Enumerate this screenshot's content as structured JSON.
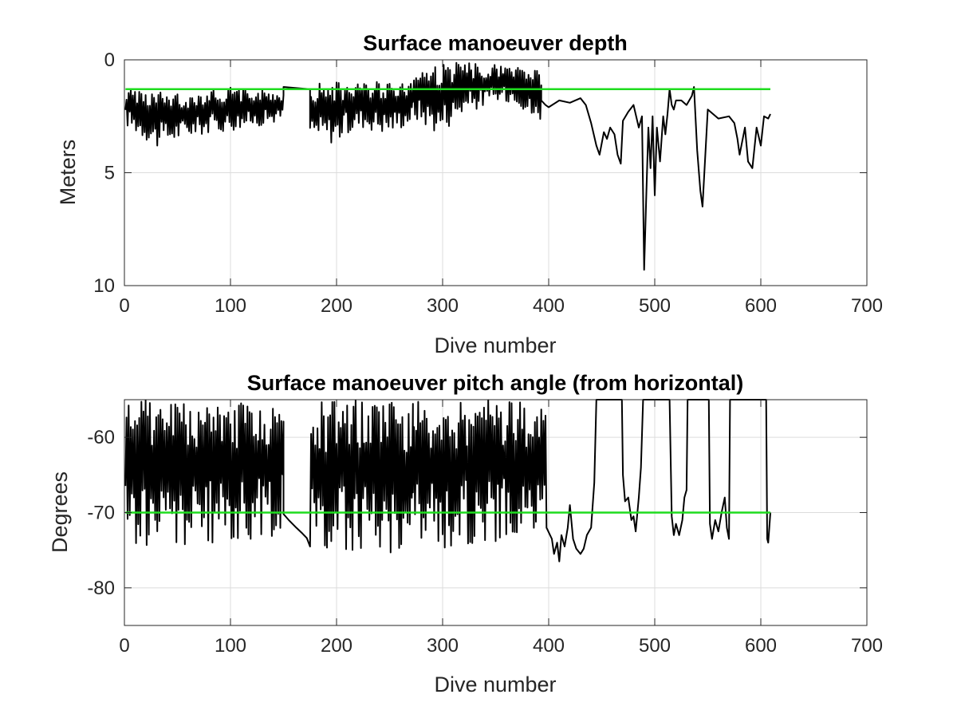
{
  "chart_data": [
    {
      "type": "line",
      "title": "Surface manoeuver depth",
      "xlabel": "Dive number",
      "ylabel": "Meters",
      "xlim": [
        0,
        700
      ],
      "ylim": [
        0,
        10
      ],
      "y_reversed": true,
      "grid": true,
      "x_ticks": [
        "0",
        "100",
        "200",
        "300",
        "400",
        "500",
        "600",
        "700"
      ],
      "y_ticks": [
        "0",
        "5",
        "10"
      ],
      "colors": {
        "data": "#000000",
        "threshold": "#1fdc1f",
        "grid": "#dcdcdc"
      },
      "reference_line": {
        "y": 1.3,
        "x_range": [
          1,
          609
        ]
      },
      "series": [
        {
          "segments": [
            {
              "oscillating": true,
              "x": [
                1,
                150
              ],
              "bottom": [
                2.9,
                3.9,
                3.4,
                3.2,
                3.0,
                2.7
              ],
              "top": [
                1.2,
                1.4,
                1.5,
                1.2,
                1.3,
                1.4
              ]
            },
            {
              "oscillating": false,
              "x": [
                150,
                175
              ],
              "y": [
                1.2,
                1.3
              ]
            },
            {
              "oscillating": true,
              "x": [
                175,
                272
              ],
              "bottom": [
                3.5,
                3.7,
                3.0,
                3.3,
                2.8
              ],
              "top": [
                1.1,
                0.9,
                1.0,
                0.9,
                1.0
              ]
            },
            {
              "oscillating": true,
              "x": [
                272,
                393
              ],
              "bottom": [
                2.6,
                3.3,
                2.4,
                2.0,
                1.8,
                3.2
              ],
              "top": [
                0.4,
                0.2,
                0.1,
                0.2,
                0.3,
                0.3
              ]
            },
            {
              "oscillating": false,
              "x": [
                393,
                397,
                400,
                410,
                420,
                430,
                435,
                440,
                445,
                448,
                452,
                455,
                458,
                462,
                465,
                468,
                470,
                475,
                480,
                485,
                488,
                490,
                492,
                494,
                496,
                498,
                500,
                502,
                505,
                508,
                510,
                512,
                514,
                516,
                518,
                520,
                525,
                530,
                535,
                537,
                540,
                543,
                545,
                550,
                560,
                570,
                575,
                578,
                580,
                585,
                588,
                592,
                596,
                600,
                603,
                607,
                609
              ],
              "y": [
                1.8,
                2.0,
                2.1,
                1.8,
                1.9,
                1.7,
                2.0,
                2.8,
                3.8,
                4.2,
                3.2,
                3.5,
                3.0,
                3.3,
                4.2,
                4.6,
                2.7,
                2.3,
                2.0,
                3.0,
                2.5,
                9.3,
                6.0,
                3.0,
                4.8,
                2.5,
                6.0,
                3.0,
                4.5,
                2.5,
                3.3,
                2.4,
                1.3,
                2.0,
                2.2,
                1.8,
                1.8,
                2.0,
                1.6,
                1.2,
                4.0,
                5.8,
                6.5,
                2.2,
                2.6,
                2.5,
                2.8,
                3.5,
                4.2,
                3.0,
                4.5,
                4.8,
                3.0,
                3.8,
                2.5,
                2.6,
                2.4
              ]
            }
          ]
        }
      ]
    },
    {
      "type": "line",
      "title": "Surface manoeuver pitch angle (from horizontal)",
      "xlabel": "Dive number",
      "ylabel": "Degrees",
      "xlim": [
        0,
        700
      ],
      "ylim": [
        -85,
        -55
      ],
      "grid": true,
      "x_ticks": [
        "0",
        "100",
        "200",
        "300",
        "400",
        "500",
        "600",
        "700"
      ],
      "y_ticks": [
        "-60",
        "-70",
        "-80"
      ],
      "colors": {
        "data": "#000000",
        "threshold": "#1fdc1f",
        "grid": "#dcdcdc"
      },
      "reference_line": {
        "y": -70,
        "x_range": [
          1,
          609
        ]
      },
      "series": [
        {
          "segments": [
            {
              "oscillating": true,
              "x": [
                1,
                150
              ],
              "bottom": [
                -74.5,
                -75.0,
                -74.5,
                -74.0,
                -73.0
              ],
              "top": [
                -55,
                -55,
                -55,
                -55,
                -55
              ]
            },
            {
              "oscillating": false,
              "x": [
                150,
                155,
                162,
                168,
                172
              ],
              "y": [
                -70.2,
                -71.0,
                -72.0,
                -72.8,
                -73.4
              ]
            },
            {
              "oscillating": true,
              "x": [
                175,
                272
              ],
              "bottom": [
                -74.8,
                -75.5,
                -75.0,
                -75.5,
                -75.0
              ],
              "top": [
                -55,
                -55,
                -55,
                -55,
                -55
              ]
            },
            {
              "oscillating": true,
              "x": [
                272,
                398
              ],
              "bottom": [
                -74.5,
                -75.0,
                -74.0,
                -73.8,
                -73.5
              ],
              "top": [
                -55,
                -55,
                -55,
                -55,
                -55
              ]
            },
            {
              "oscillating": false,
              "x": [
                398,
                403,
                405,
                408,
                410,
                412,
                415,
                418,
                420,
                423,
                426,
                430,
                433,
                436,
                440,
                443,
                445
              ],
              "y": [
                -72.0,
                -73.5,
                -75.5,
                -74.0,
                -76.5,
                -73.0,
                -74.5,
                -72.0,
                -69.0,
                -73.5,
                -74.8,
                -75.5,
                -74.8,
                -73.0,
                -72.0,
                -66.0,
                -55.0
              ]
            },
            {
              "oscillating": false,
              "x": [
                469,
                470,
                472,
                475,
                478,
                480,
                482,
                485,
                487,
                489
              ],
              "y": [
                -55,
                -65.0,
                -68.5,
                -68.0,
                -71.0,
                -70.5,
                -72.5,
                -68.0,
                -64.0,
                -55
              ]
            },
            {
              "oscillating": false,
              "x": [
                514,
                516,
                518,
                520,
                523,
                526,
                528,
                530,
                531
              ],
              "y": [
                -55,
                -70.5,
                -73.0,
                -71.5,
                -73.0,
                -71.0,
                -68.0,
                -67.0,
                -55
              ]
            },
            {
              "oscillating": false,
              "x": [
                551,
                552,
                554,
                557,
                560,
                563,
                566,
                568,
                570,
                571
              ],
              "y": [
                -55,
                -71.5,
                -73.5,
                -71.0,
                -72.5,
                -70.0,
                -68.0,
                -72.0,
                -73.5,
                -55
              ]
            },
            {
              "oscillating": false,
              "x": [
                605,
                606,
                607,
                609
              ],
              "y": [
                -55,
                -73.5,
                -74.0,
                -70.0
              ]
            }
          ]
        }
      ]
    }
  ]
}
